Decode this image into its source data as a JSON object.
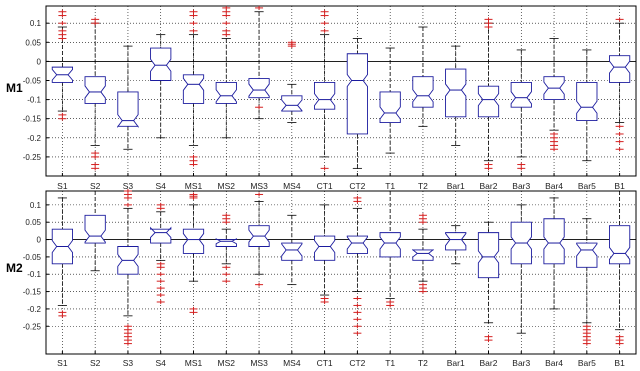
{
  "colors": {
    "box": "#1b1b9e",
    "median": "#1b1b9e",
    "outlier": "#d42020",
    "whisker": "#000000",
    "grid": "#000000"
  },
  "chart_data": [
    {
      "type": "box",
      "panel_label": "M1",
      "ylim": [
        -0.3,
        0.145
      ],
      "yticks": [
        -0.25,
        -0.2,
        -0.15,
        -0.1,
        -0.05,
        0,
        0.05,
        0.1
      ],
      "ytick_labels": [
        "-0.25",
        "-0.2",
        "-0.15",
        "-0.1",
        "-0.05",
        "0",
        "0.05",
        "0.1"
      ],
      "grid": true,
      "categories": [
        "S1",
        "S2",
        "S3",
        "S4",
        "MS1",
        "MS2",
        "MS3",
        "MS4",
        "CT1",
        "CT2",
        "T1",
        "T2",
        "Bar1",
        "Bar2",
        "Bar3",
        "Bar4",
        "Bar5",
        "B1"
      ],
      "boxes": [
        {
          "q1": -0.055,
          "median": -0.035,
          "q3": -0.015,
          "whisker_low": -0.13,
          "whisker_high": 0.09,
          "outliers": [
            -0.15,
            -0.14,
            0.06,
            0.07,
            0.08,
            0.1,
            0.12,
            0.13
          ]
        },
        {
          "q1": -0.11,
          "median": -0.08,
          "q3": -0.04,
          "whisker_low": -0.22,
          "whisker_high": 0.1,
          "outliers": [
            -0.24,
            -0.25,
            -0.27,
            -0.28,
            0.1,
            0.11
          ]
        },
        {
          "q1": -0.17,
          "median": -0.155,
          "q3": -0.08,
          "whisker_low": -0.23,
          "whisker_high": 0.04,
          "outliers": []
        },
        {
          "q1": -0.05,
          "median": -0.01,
          "q3": 0.035,
          "whisker_low": -0.2,
          "whisker_high": 0.07,
          "outliers": []
        },
        {
          "q1": -0.11,
          "median": -0.06,
          "q3": -0.035,
          "whisker_low": -0.22,
          "whisker_high": 0.07,
          "outliers": [
            -0.25,
            -0.26,
            -0.27,
            0.08,
            0.1,
            0.12,
            0.13
          ]
        },
        {
          "q1": -0.11,
          "median": -0.09,
          "q3": -0.055,
          "whisker_low": -0.2,
          "whisker_high": 0.06,
          "outliers": [
            0.07,
            0.08,
            0.1,
            0.12,
            0.13,
            0.14
          ]
        },
        {
          "q1": -0.095,
          "median": -0.075,
          "q3": -0.045,
          "whisker_low": -0.15,
          "whisker_high": 0.13,
          "outliers": [
            -0.12,
            0.14
          ]
        },
        {
          "q1": -0.13,
          "median": -0.115,
          "q3": -0.09,
          "whisker_low": -0.16,
          "whisker_high": -0.06,
          "outliers": [
            0.04,
            0.045,
            0.05
          ]
        },
        {
          "q1": -0.125,
          "median": -0.1,
          "q3": -0.055,
          "whisker_low": -0.25,
          "whisker_high": 0.07,
          "outliers": [
            -0.28,
            0.08,
            0.1,
            0.12,
            0.13
          ]
        },
        {
          "q1": -0.19,
          "median": -0.05,
          "q3": 0.02,
          "whisker_low": -0.28,
          "whisker_high": 0.06,
          "outliers": []
        },
        {
          "q1": -0.16,
          "median": -0.135,
          "q3": -0.08,
          "whisker_low": -0.24,
          "whisker_high": 0.035,
          "outliers": []
        },
        {
          "q1": -0.12,
          "median": -0.09,
          "q3": -0.04,
          "whisker_low": -0.17,
          "whisker_high": 0.09,
          "outliers": []
        },
        {
          "q1": -0.145,
          "median": -0.075,
          "q3": -0.02,
          "whisker_low": -0.22,
          "whisker_high": 0.04,
          "outliers": []
        },
        {
          "q1": -0.145,
          "median": -0.1,
          "q3": -0.065,
          "whisker_low": -0.26,
          "whisker_high": 0.1,
          "outliers": [
            -0.27,
            -0.28,
            0.09,
            0.1,
            0.11
          ]
        },
        {
          "q1": -0.12,
          "median": -0.095,
          "q3": -0.055,
          "whisker_low": -0.25,
          "whisker_high": 0.03,
          "outliers": [
            -0.27,
            -0.28
          ]
        },
        {
          "q1": -0.1,
          "median": -0.07,
          "q3": -0.04,
          "whisker_low": -0.18,
          "whisker_high": 0.06,
          "outliers": [
            -0.19,
            -0.2,
            -0.21,
            -0.22,
            -0.23
          ]
        },
        {
          "q1": -0.155,
          "median": -0.12,
          "q3": -0.055,
          "whisker_low": -0.26,
          "whisker_high": 0.03,
          "outliers": []
        },
        {
          "q1": -0.055,
          "median": -0.015,
          "q3": 0.015,
          "whisker_low": -0.16,
          "whisker_high": 0.1,
          "outliers": [
            -0.17,
            -0.19,
            -0.21,
            -0.23,
            0.11
          ]
        }
      ]
    },
    {
      "type": "box",
      "panel_label": "M2",
      "ylim": [
        -0.33,
        0.14
      ],
      "yticks": [
        -0.25,
        -0.2,
        -0.15,
        -0.1,
        -0.05,
        0,
        0.05,
        0.1
      ],
      "ytick_labels": [
        "-0.25",
        "-0.2",
        "-0.15",
        "-0.1",
        "-0.05",
        "0",
        "0.05",
        "0.1"
      ],
      "grid": true,
      "categories": [
        "S1",
        "S2",
        "S3",
        "S4",
        "MS1",
        "MS2",
        "MS3",
        "MS4",
        "CT1",
        "CT2",
        "T1",
        "T2",
        "Bar1",
        "Bar2",
        "Bar3",
        "Bar4",
        "Bar5",
        "B1"
      ],
      "boxes": [
        {
          "q1": -0.07,
          "median": -0.02,
          "q3": 0.03,
          "whisker_low": -0.19,
          "whisker_high": 0.12,
          "outliers": [
            -0.21,
            -0.22
          ]
        },
        {
          "q1": -0.01,
          "median": 0.01,
          "q3": 0.07,
          "whisker_low": -0.09,
          "whisker_high": 0.14,
          "outliers": []
        },
        {
          "q1": -0.1,
          "median": -0.06,
          "q3": -0.02,
          "whisker_low": -0.22,
          "whisker_high": 0.09,
          "outliers": [
            -0.25,
            -0.26,
            -0.27,
            -0.28,
            -0.29,
            -0.3,
            0.1,
            0.12,
            0.13,
            0.14
          ]
        },
        {
          "q1": -0.01,
          "median": 0.02,
          "q3": 0.03,
          "whisker_low": -0.06,
          "whisker_high": 0.08,
          "outliers": [
            -0.07,
            -0.08,
            -0.1,
            -0.12,
            -0.14,
            -0.16,
            -0.18,
            0.09,
            0.1
          ]
        },
        {
          "q1": -0.04,
          "median": 0.0,
          "q3": 0.03,
          "whisker_low": -0.12,
          "whisker_high": 0.1,
          "outliers": [
            -0.2,
            -0.21,
            0.12,
            0.125,
            0.13
          ]
        },
        {
          "q1": -0.02,
          "median": -0.005,
          "q3": 0.0,
          "whisker_low": -0.07,
          "whisker_high": 0.03,
          "outliers": [
            -0.08,
            -0.1,
            -0.12,
            0.05,
            0.06,
            0.07
          ]
        },
        {
          "q1": -0.02,
          "median": 0.01,
          "q3": 0.04,
          "whisker_low": -0.1,
          "whisker_high": 0.11,
          "outliers": [
            -0.13,
            0.13
          ]
        },
        {
          "q1": -0.06,
          "median": -0.03,
          "q3": -0.01,
          "whisker_low": -0.13,
          "whisker_high": 0.07,
          "outliers": []
        },
        {
          "q1": -0.06,
          "median": -0.02,
          "q3": 0.01,
          "whisker_low": -0.16,
          "whisker_high": 0.1,
          "outliers": [
            -0.17,
            -0.18
          ]
        },
        {
          "q1": -0.04,
          "median": -0.01,
          "q3": 0.01,
          "whisker_low": -0.15,
          "whisker_high": 0.09,
          "outliers": [
            -0.17,
            -0.19,
            -0.21,
            -0.23,
            -0.25,
            -0.27,
            0.11,
            0.12
          ]
        },
        {
          "q1": -0.05,
          "median": -0.01,
          "q3": 0.02,
          "whisker_low": -0.17,
          "whisker_high": 0.14,
          "outliers": [
            -0.18,
            -0.19
          ]
        },
        {
          "q1": -0.06,
          "median": -0.04,
          "q3": -0.03,
          "whisker_low": -0.12,
          "whisker_high": 0.03,
          "outliers": [
            -0.13,
            -0.14,
            -0.15,
            0.05,
            0.06,
            0.07
          ]
        },
        {
          "q1": -0.03,
          "median": 0.0,
          "q3": 0.02,
          "whisker_low": -0.07,
          "whisker_high": 0.04,
          "outliers": []
        },
        {
          "q1": -0.11,
          "median": -0.05,
          "q3": 0.02,
          "whisker_low": -0.24,
          "whisker_high": 0.05,
          "outliers": [
            -0.28,
            -0.29
          ]
        },
        {
          "q1": -0.07,
          "median": -0.01,
          "q3": 0.05,
          "whisker_low": -0.27,
          "whisker_high": 0.1,
          "outliers": []
        },
        {
          "q1": -0.07,
          "median": -0.01,
          "q3": 0.06,
          "whisker_low": -0.2,
          "whisker_high": 0.12,
          "outliers": []
        },
        {
          "q1": -0.08,
          "median": -0.03,
          "q3": -0.01,
          "whisker_low": -0.24,
          "whisker_high": 0.06,
          "outliers": [
            -0.25,
            -0.26,
            -0.27,
            -0.28,
            -0.29,
            -0.3
          ]
        },
        {
          "q1": -0.07,
          "median": -0.04,
          "q3": 0.04,
          "whisker_low": -0.26,
          "whisker_high": 0.14,
          "outliers": [
            -0.28,
            -0.29,
            -0.3
          ]
        }
      ]
    }
  ]
}
